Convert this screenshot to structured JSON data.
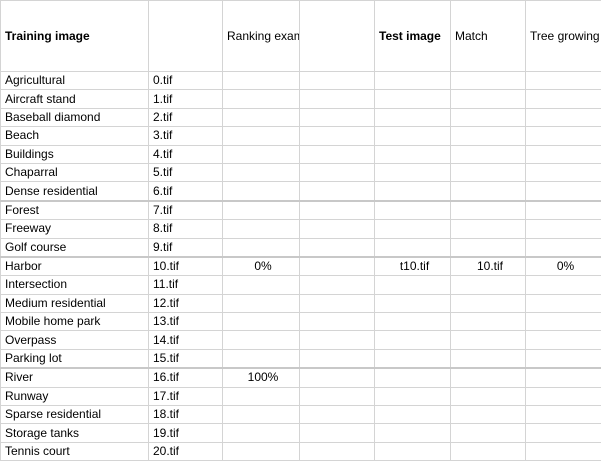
{
  "columns": {
    "training_image": "Training image",
    "file": "",
    "ranking_example": "Ranking example",
    "blank": "",
    "test_image": "Test image",
    "match": "Match",
    "tree_growing_potential": "Tree growing potential"
  },
  "rows": [
    {
      "name": "Agricultural",
      "file": "0.tif",
      "ranking": "",
      "test": "",
      "match": "",
      "potential": ""
    },
    {
      "name": "Aircraft stand",
      "file": "1.tif",
      "ranking": "",
      "test": "",
      "match": "",
      "potential": ""
    },
    {
      "name": "Baseball diamond",
      "file": "2.tif",
      "ranking": "",
      "test": "",
      "match": "",
      "potential": ""
    },
    {
      "name": "Beach",
      "file": "3.tif",
      "ranking": "",
      "test": "",
      "match": "",
      "potential": ""
    },
    {
      "name": "Buildings",
      "file": "4.tif",
      "ranking": "",
      "test": "",
      "match": "",
      "potential": ""
    },
    {
      "name": "Chaparral",
      "file": "5.tif",
      "ranking": "",
      "test": "",
      "match": "",
      "potential": ""
    },
    {
      "name": "Dense residential",
      "file": "6.tif",
      "ranking": "",
      "test": "",
      "match": "",
      "potential": ""
    },
    {
      "name": "Forest",
      "file": "7.tif",
      "ranking": "",
      "test": "",
      "match": "",
      "potential": ""
    },
    {
      "name": "Freeway",
      "file": "8.tif",
      "ranking": "",
      "test": "",
      "match": "",
      "potential": ""
    },
    {
      "name": "Golf course",
      "file": "9.tif",
      "ranking": "",
      "test": "",
      "match": "",
      "potential": ""
    },
    {
      "name": "Harbor",
      "file": "10.tif",
      "ranking": "0%",
      "test": "t10.tif",
      "match": "10.tif",
      "potential": "0%"
    },
    {
      "name": "Intersection",
      "file": "11.tif",
      "ranking": "",
      "test": "",
      "match": "",
      "potential": ""
    },
    {
      "name": "Medium residential",
      "file": "12.tif",
      "ranking": "",
      "test": "",
      "match": "",
      "potential": ""
    },
    {
      "name": "Mobile home park",
      "file": "13.tif",
      "ranking": "",
      "test": "",
      "match": "",
      "potential": ""
    },
    {
      "name": "Overpass",
      "file": "14.tif",
      "ranking": "",
      "test": "",
      "match": "",
      "potential": ""
    },
    {
      "name": "Parking lot",
      "file": "15.tif",
      "ranking": "",
      "test": "",
      "match": "",
      "potential": ""
    },
    {
      "name": "River",
      "file": "16.tif",
      "ranking": "100%",
      "test": "",
      "match": "",
      "potential": ""
    },
    {
      "name": "Runway",
      "file": "17.tif",
      "ranking": "",
      "test": "",
      "match": "",
      "potential": ""
    },
    {
      "name": "Sparse residential",
      "file": "18.tif",
      "ranking": "",
      "test": "",
      "match": "",
      "potential": ""
    },
    {
      "name": "Storage tanks",
      "file": "19.tif",
      "ranking": "",
      "test": "",
      "match": "",
      "potential": ""
    },
    {
      "name": "Tennis court",
      "file": "20.tif",
      "ranking": "",
      "test": "",
      "match": "",
      "potential": ""
    }
  ]
}
